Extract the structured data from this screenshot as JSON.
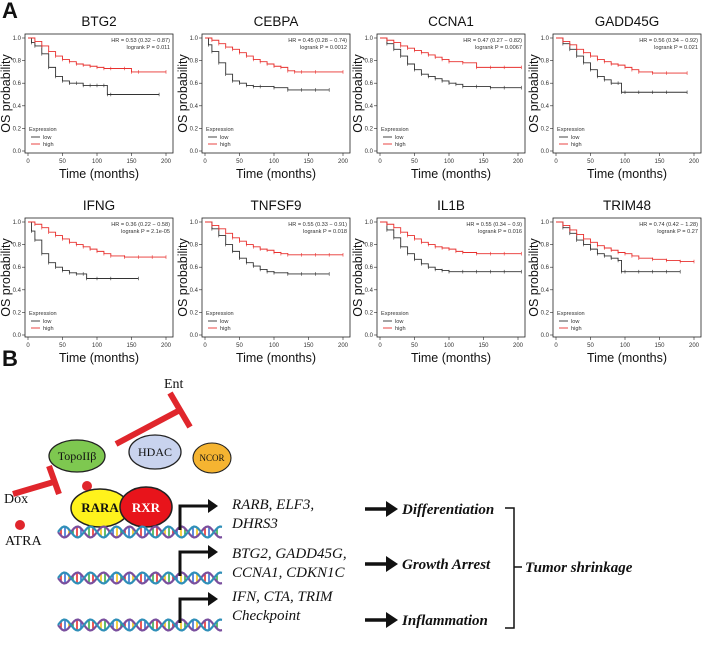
{
  "panel_a": {
    "letter": "A",
    "x_axis_label": "Time (months)",
    "y_axis_label": "OS probability",
    "x_ticks": [
      "0",
      "50",
      "100",
      "150",
      "200"
    ],
    "y_ticks": [
      "0.0",
      "0.2",
      "0.4",
      "0.6",
      "0.8",
      "1.0"
    ],
    "legend_title": "Expression",
    "legend_low": "low",
    "legend_high": "high",
    "colors": {
      "low": "#333333",
      "high": "#e8302e"
    }
  },
  "panel_b": {
    "letter": "B",
    "labels": {
      "ent": "Ent",
      "dox": "Dox",
      "atra": "ATRA",
      "topo": "TopoIIβ",
      "hdac": "HDAC",
      "ncor": "NCOR",
      "rara": "RARA",
      "rxr": "RXR"
    },
    "rows": [
      {
        "genes": [
          "RARB, ELF3,",
          "DHRS3"
        ],
        "outcome": "Differentiation"
      },
      {
        "genes": [
          "BTG2, GADD45G,",
          "CCNA1, CDKN1C"
        ],
        "outcome": "Growth Arrest"
      },
      {
        "genes": [
          "IFN, CTA, TRIM",
          "Checkpoint"
        ],
        "outcome": "Inflammation"
      }
    ],
    "result": "Tumor shrinkage",
    "colors": {
      "topo": "#7ec850",
      "hdac": "#c9d3ee",
      "ncor": "#f5b431",
      "rara": "#fff21c",
      "rxr": "#e8141b",
      "inhibitor": "#e0262c",
      "atra_dot": "#e0262c"
    }
  },
  "chart_data": [
    {
      "type": "line",
      "title": "BTG2",
      "hr_text": "HR = 0.53 (0.32 − 0.87)",
      "p_text": "logrank P = 0.011",
      "xlabel": "Time (months)",
      "ylabel": "OS probability",
      "xlim": [
        0,
        200
      ],
      "ylim": [
        0,
        1
      ],
      "series": [
        {
          "name": "low",
          "x": [
            0,
            5,
            10,
            20,
            30,
            40,
            50,
            60,
            70,
            80,
            90,
            100,
            110,
            115,
            120,
            190
          ],
          "y": [
            1.0,
            0.96,
            0.93,
            0.86,
            0.74,
            0.66,
            0.62,
            0.6,
            0.6,
            0.58,
            0.58,
            0.58,
            0.58,
            0.5,
            0.5,
            0.5
          ]
        },
        {
          "name": "high",
          "x": [
            0,
            10,
            20,
            30,
            40,
            50,
            60,
            70,
            80,
            90,
            100,
            110,
            120,
            140,
            150,
            160,
            200
          ],
          "y": [
            1.0,
            0.97,
            0.93,
            0.88,
            0.84,
            0.81,
            0.79,
            0.77,
            0.76,
            0.75,
            0.74,
            0.73,
            0.73,
            0.73,
            0.7,
            0.7,
            0.7
          ]
        }
      ]
    },
    {
      "type": "line",
      "title": "CEBPA",
      "hr_text": "HR = 0.45 (0.28 − 0.74)",
      "p_text": "logrank P = 0.0012",
      "xlabel": "Time (months)",
      "ylabel": "OS probability",
      "xlim": [
        0,
        200
      ],
      "ylim": [
        0,
        1
      ],
      "series": [
        {
          "name": "low",
          "x": [
            0,
            5,
            10,
            20,
            30,
            40,
            50,
            60,
            70,
            80,
            100,
            120,
            140,
            160,
            180
          ],
          "y": [
            1.0,
            0.94,
            0.88,
            0.78,
            0.68,
            0.62,
            0.6,
            0.58,
            0.57,
            0.57,
            0.56,
            0.54,
            0.54,
            0.54,
            0.54
          ]
        },
        {
          "name": "high",
          "x": [
            0,
            10,
            20,
            30,
            40,
            50,
            60,
            70,
            80,
            90,
            100,
            110,
            120,
            130,
            140,
            160,
            200
          ],
          "y": [
            1.0,
            0.98,
            0.95,
            0.92,
            0.9,
            0.87,
            0.84,
            0.81,
            0.79,
            0.77,
            0.75,
            0.74,
            0.71,
            0.7,
            0.7,
            0.7,
            0.7
          ]
        }
      ]
    },
    {
      "type": "line",
      "title": "CCNA1",
      "hr_text": "HR = 0.47 (0.27 − 0.82)",
      "p_text": "logrank P = 0.0067",
      "xlabel": "Time (months)",
      "ylabel": "OS probability",
      "xlim": [
        0,
        200
      ],
      "ylim": [
        0,
        1
      ],
      "series": [
        {
          "name": "low",
          "x": [
            0,
            10,
            20,
            30,
            40,
            50,
            60,
            70,
            80,
            90,
            100,
            110,
            120,
            140,
            160,
            180,
            205
          ],
          "y": [
            1.0,
            0.95,
            0.9,
            0.84,
            0.77,
            0.72,
            0.68,
            0.66,
            0.64,
            0.62,
            0.6,
            0.59,
            0.57,
            0.57,
            0.56,
            0.56,
            0.56
          ]
        },
        {
          "name": "high",
          "x": [
            0,
            10,
            20,
            30,
            40,
            50,
            60,
            70,
            80,
            90,
            100,
            120,
            140,
            160,
            180,
            205
          ],
          "y": [
            1.0,
            0.98,
            0.96,
            0.93,
            0.91,
            0.89,
            0.87,
            0.85,
            0.83,
            0.81,
            0.79,
            0.78,
            0.74,
            0.74,
            0.74,
            0.74
          ]
        }
      ]
    },
    {
      "type": "line",
      "title": "GADD45G",
      "hr_text": "HR = 0.56 (0.34 − 0.92)",
      "p_text": "logrank P = 0.021",
      "xlabel": "Time (months)",
      "ylabel": "OS probability",
      "xlim": [
        0,
        200
      ],
      "ylim": [
        0,
        1
      ],
      "series": [
        {
          "name": "low",
          "x": [
            0,
            10,
            20,
            30,
            40,
            50,
            60,
            70,
            80,
            90,
            95,
            100,
            120,
            140,
            160,
            190
          ],
          "y": [
            1.0,
            0.95,
            0.9,
            0.84,
            0.78,
            0.72,
            0.66,
            0.63,
            0.6,
            0.6,
            0.52,
            0.52,
            0.52,
            0.52,
            0.52,
            0.52
          ]
        },
        {
          "name": "high",
          "x": [
            0,
            10,
            20,
            30,
            40,
            50,
            60,
            70,
            80,
            90,
            100,
            110,
            120,
            140,
            160,
            190
          ],
          "y": [
            1.0,
            0.97,
            0.94,
            0.9,
            0.87,
            0.84,
            0.81,
            0.79,
            0.77,
            0.76,
            0.74,
            0.72,
            0.7,
            0.69,
            0.69,
            0.69
          ]
        }
      ]
    },
    {
      "type": "line",
      "title": "IFNG",
      "hr_text": "HR = 0.36 (0.22 − 0.58)",
      "p_text": "logrank P = 2.1e-05",
      "xlabel": "Time (months)",
      "ylabel": "OS probability",
      "xlim": [
        0,
        200
      ],
      "ylim": [
        0,
        1
      ],
      "series": [
        {
          "name": "low",
          "x": [
            0,
            5,
            10,
            20,
            30,
            40,
            50,
            60,
            70,
            80,
            85,
            100,
            120,
            160
          ],
          "y": [
            1.0,
            0.92,
            0.84,
            0.72,
            0.64,
            0.6,
            0.57,
            0.55,
            0.54,
            0.54,
            0.5,
            0.5,
            0.5,
            0.5
          ]
        },
        {
          "name": "high",
          "x": [
            0,
            10,
            20,
            30,
            40,
            50,
            60,
            70,
            80,
            90,
            100,
            110,
            120,
            140,
            160,
            180,
            200
          ],
          "y": [
            1.0,
            0.98,
            0.95,
            0.91,
            0.88,
            0.85,
            0.82,
            0.8,
            0.78,
            0.76,
            0.74,
            0.72,
            0.7,
            0.69,
            0.69,
            0.69,
            0.69
          ]
        }
      ]
    },
    {
      "type": "line",
      "title": "TNFSF9",
      "hr_text": "HR = 0.55 (0.33 − 0.91)",
      "p_text": "logrank P = 0.018",
      "xlabel": "Time (months)",
      "ylabel": "OS probability",
      "xlim": [
        0,
        200
      ],
      "ylim": [
        0,
        1
      ],
      "series": [
        {
          "name": "low",
          "x": [
            0,
            10,
            20,
            30,
            40,
            50,
            60,
            70,
            80,
            90,
            100,
            120,
            140,
            160,
            180
          ],
          "y": [
            1.0,
            0.94,
            0.88,
            0.8,
            0.74,
            0.68,
            0.64,
            0.61,
            0.58,
            0.56,
            0.55,
            0.54,
            0.54,
            0.54,
            0.54
          ]
        },
        {
          "name": "high",
          "x": [
            0,
            10,
            20,
            30,
            40,
            50,
            60,
            70,
            80,
            90,
            100,
            110,
            120,
            140,
            160,
            180,
            200
          ],
          "y": [
            1.0,
            0.97,
            0.94,
            0.9,
            0.86,
            0.83,
            0.8,
            0.78,
            0.76,
            0.75,
            0.73,
            0.72,
            0.71,
            0.71,
            0.71,
            0.71,
            0.71
          ]
        }
      ]
    },
    {
      "type": "line",
      "title": "IL1B",
      "hr_text": "HR = 0.55 (0.34 − 0.9)",
      "p_text": "logrank P = 0.016",
      "xlabel": "Time (months)",
      "ylabel": "OS probability",
      "xlim": [
        0,
        200
      ],
      "ylim": [
        0,
        1
      ],
      "series": [
        {
          "name": "low",
          "x": [
            0,
            10,
            20,
            30,
            40,
            50,
            60,
            70,
            80,
            90,
            100,
            120,
            140,
            160,
            180,
            205
          ],
          "y": [
            1.0,
            0.93,
            0.86,
            0.78,
            0.72,
            0.67,
            0.63,
            0.6,
            0.58,
            0.57,
            0.56,
            0.56,
            0.56,
            0.56,
            0.56,
            0.56
          ]
        },
        {
          "name": "high",
          "x": [
            0,
            10,
            20,
            30,
            40,
            50,
            60,
            70,
            80,
            90,
            100,
            110,
            120,
            140,
            160,
            180,
            205
          ],
          "y": [
            1.0,
            0.98,
            0.95,
            0.91,
            0.88,
            0.85,
            0.82,
            0.8,
            0.78,
            0.77,
            0.76,
            0.74,
            0.73,
            0.72,
            0.72,
            0.72,
            0.72
          ]
        }
      ]
    },
    {
      "type": "line",
      "title": "TRIM48",
      "hr_text": "HR = 0.74 (0.42 − 1.28)",
      "p_text": "logrank P = 0.27",
      "xlabel": "Time (months)",
      "ylabel": "OS probability",
      "xlim": [
        0,
        200
      ],
      "ylim": [
        0,
        1
      ],
      "series": [
        {
          "name": "low",
          "x": [
            0,
            10,
            20,
            30,
            40,
            50,
            60,
            70,
            80,
            90,
            95,
            100,
            120,
            140,
            160,
            180
          ],
          "y": [
            1.0,
            0.95,
            0.9,
            0.84,
            0.8,
            0.76,
            0.72,
            0.7,
            0.68,
            0.66,
            0.56,
            0.56,
            0.56,
            0.56,
            0.56,
            0.56
          ]
        },
        {
          "name": "high",
          "x": [
            0,
            10,
            20,
            30,
            40,
            50,
            60,
            70,
            80,
            90,
            100,
            110,
            120,
            140,
            160,
            180,
            200
          ],
          "y": [
            1.0,
            0.97,
            0.93,
            0.89,
            0.85,
            0.82,
            0.79,
            0.77,
            0.75,
            0.73,
            0.72,
            0.7,
            0.68,
            0.67,
            0.66,
            0.65,
            0.65
          ]
        }
      ]
    }
  ]
}
